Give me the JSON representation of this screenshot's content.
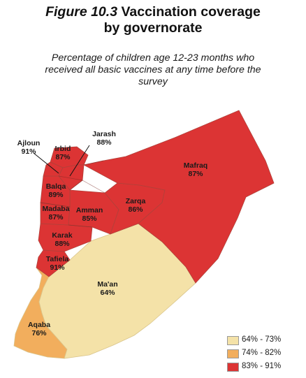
{
  "title": {
    "figure_label": "Figure 10.3",
    "line1": "Vaccination coverage",
    "line2": "by governorate"
  },
  "subtitle": {
    "line1": "Percentage of children age 12-23 months who",
    "line2": "received all basic vaccines at any time before the",
    "line3": "survey"
  },
  "colors": {
    "low": "#f4e2a8",
    "mid": "#f2ae5d",
    "high": "#dc3434"
  },
  "regions": [
    {
      "name": "Ajloun",
      "value": "91%",
      "category": "high"
    },
    {
      "name": "Irbid",
      "value": "87%",
      "category": "high"
    },
    {
      "name": "Jarash",
      "value": "88%",
      "category": "high"
    },
    {
      "name": "Mafraq",
      "value": "87%",
      "category": "high"
    },
    {
      "name": "Balqa",
      "value": "89%",
      "category": "high"
    },
    {
      "name": "Zarqa",
      "value": "86%",
      "category": "high"
    },
    {
      "name": "Madaba",
      "value": "87%",
      "category": "high"
    },
    {
      "name": "Amman",
      "value": "85%",
      "category": "high"
    },
    {
      "name": "Karak",
      "value": "88%",
      "category": "high"
    },
    {
      "name": "Tafiela",
      "value": "91%",
      "category": "high"
    },
    {
      "name": "Ma'an",
      "value": "64%",
      "category": "low"
    },
    {
      "name": "Aqaba",
      "value": "76%",
      "category": "mid"
    }
  ],
  "legend": [
    {
      "label": "64% - 73%",
      "color": "#f4e2a8"
    },
    {
      "label": "74% - 82%",
      "color": "#f2ae5d"
    },
    {
      "label": "83% - 91%",
      "color": "#dc3434"
    }
  ]
}
